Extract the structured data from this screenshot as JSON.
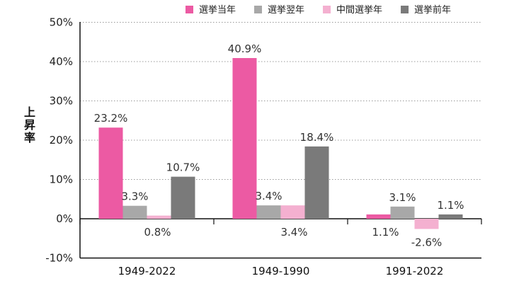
{
  "chart_data": {
    "type": "bar",
    "ylabel": "上昇率",
    "ylim": [
      -10,
      50
    ],
    "yticks": [
      "50%",
      "40%",
      "30%",
      "20%",
      "10%",
      "0%",
      "-10%"
    ],
    "ytick_values": [
      50,
      40,
      30,
      20,
      10,
      0,
      -10
    ],
    "grid": "horizontal-dotted",
    "legend_position": "top-right",
    "categories": [
      "1949-2022",
      "1949-1990",
      "1991-2022"
    ],
    "series": [
      {
        "name": "選挙当年",
        "color": "#ec5aa3",
        "values": [
          23.2,
          40.9,
          1.1
        ],
        "labels": [
          "23.2%",
          "40.9%",
          "1.1%"
        ]
      },
      {
        "name": "選挙翌年",
        "color": "#a8a8a8",
        "values": [
          3.3,
          3.4,
          3.1
        ],
        "labels": [
          "3.3%",
          "3.4%",
          "3.1%"
        ]
      },
      {
        "name": "中間選挙年",
        "color": "#f4b0d0",
        "values": [
          0.8,
          3.4,
          -2.6
        ],
        "labels": [
          "0.8%",
          "3.4%",
          "-2.6%"
        ]
      },
      {
        "name": "選挙前年",
        "color": "#7a7a7a",
        "values": [
          10.7,
          18.4,
          1.1
        ],
        "labels": [
          "10.7%",
          "18.4%",
          "1.1%"
        ]
      }
    ]
  }
}
